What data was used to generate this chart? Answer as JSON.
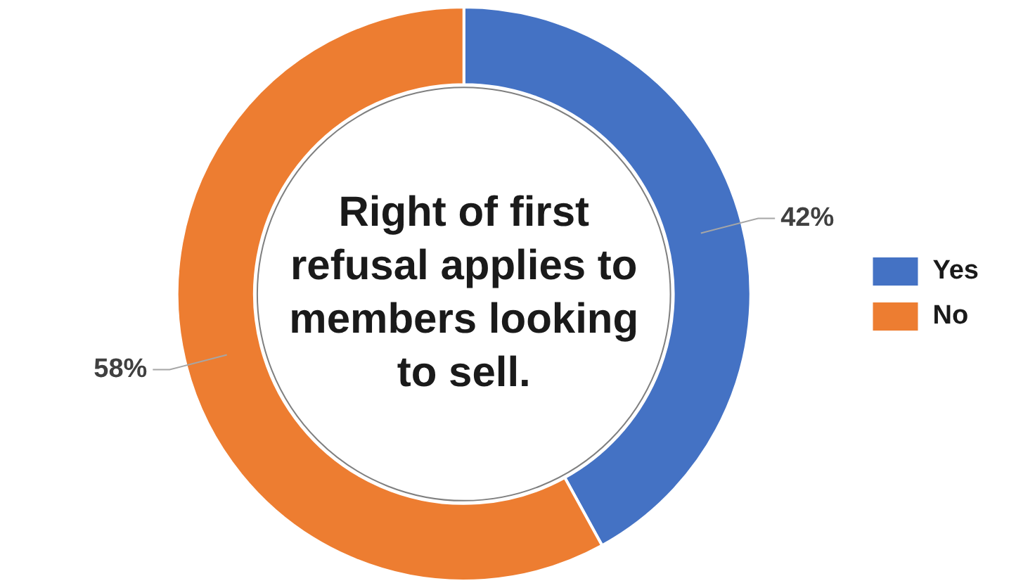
{
  "chart_data": {
    "type": "donut",
    "title": "Right of first refusal applies to members looking to sell.",
    "categories": [
      "Yes",
      "No"
    ],
    "values": [
      42,
      58
    ],
    "colors": [
      "#4472c4",
      "#ed7d31"
    ],
    "value_labels": [
      "42%",
      "58%"
    ],
    "legend": "right"
  }
}
